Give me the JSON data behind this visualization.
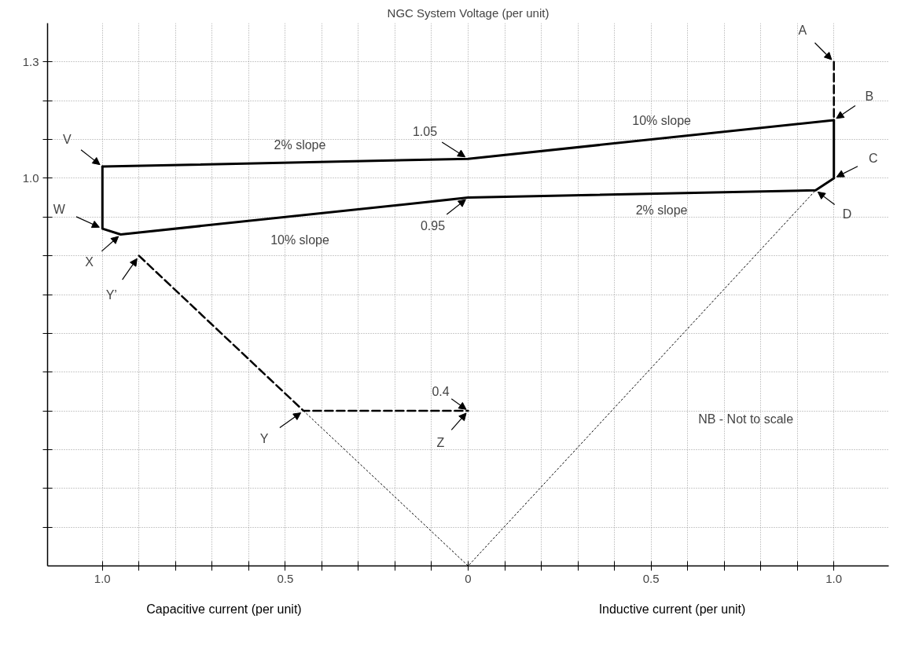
{
  "chart_data": {
    "type": "line",
    "title": "NGC System Voltage (per unit)",
    "xlabel": "Capacitive current (per unit)",
    "xlim": [
      -1.15,
      1.15
    ],
    "ylim": [
      0,
      1.4
    ],
    "xticks": [
      {
        "value": -1,
        "label": "1.0"
      },
      {
        "value": -0.9,
        "label": null
      },
      {
        "value": -0.8,
        "label": null
      },
      {
        "value": -0.7,
        "label": null
      },
      {
        "value": -0.6,
        "label": null
      },
      {
        "value": -0.5,
        "label": "0.5"
      },
      {
        "value": -0.4,
        "label": null
      },
      {
        "value": -0.3,
        "label": null
      },
      {
        "value": -0.2,
        "label": null
      },
      {
        "value": -0.1,
        "label": null
      },
      0,
      {
        "value": 0.1,
        "label": null
      },
      {
        "value": 0.2,
        "label": null
      },
      {
        "value": 0.3,
        "label": null
      },
      {
        "value": 0.4,
        "label": null
      },
      0.5,
      {
        "value": 0.6,
        "label": null
      },
      {
        "value": 0.7,
        "label": null
      },
      {
        "value": 0.8,
        "label": null
      },
      {
        "value": 0.9,
        "label": null
      },
      {
        "value": 1,
        "label": "1.0"
      }
    ],
    "yticks": [
      {
        "value": 0.1,
        "label": null
      },
      {
        "value": 0.2,
        "label": null
      },
      {
        "value": 0.3,
        "label": null
      },
      {
        "value": 0.4,
        "label": null
      },
      {
        "value": 0.5,
        "label": null
      },
      {
        "value": 0.6,
        "label": null
      },
      {
        "value": 0.7,
        "label": null
      },
      {
        "value": 0.8,
        "label": null
      },
      {
        "value": 0.9,
        "label": null
      },
      {
        "value": 1.0,
        "label": "1.0"
      },
      {
        "value": 1.1,
        "label": null
      },
      {
        "value": 1.2,
        "label": null
      },
      1.3
    ],
    "grid": true,
    "series": [
      {
        "color": "#000000",
        "line_style": "solid",
        "x": [
          -1,
          0,
          1
        ],
        "values": [
          1.03,
          1.05,
          1.15
        ]
      },
      {
        "color": "#000000",
        "line_style": "solid",
        "x": [
          -1,
          -1,
          -0.95,
          0,
          0.95,
          1,
          1
        ],
        "values": [
          1.03,
          0.87,
          0.855,
          0.95,
          0.969,
          1.0,
          1.15
        ]
      },
      {
        "color": "#000000",
        "line_style": "dashed",
        "x": [
          1,
          1
        ],
        "values": [
          1.3,
          1.15
        ]
      },
      {
        "color": "#000000",
        "line_style": "dashed",
        "x": [
          -0.9,
          -0.45,
          0
        ],
        "values": [
          0.8,
          0.4,
          0.4
        ]
      },
      {
        "color": "#000000",
        "line_style": "dotted",
        "x": [
          -0.45,
          0,
          0.95
        ],
        "values": [
          0.4,
          0,
          0.969
        ]
      }
    ],
    "annotations": [
      {
        "text": "A",
        "x": 1,
        "y": 1.3
      },
      {
        "text": "B",
        "x": 1,
        "y": 1.15
      },
      {
        "text": "C",
        "x": 1,
        "y": 1.0
      },
      {
        "text": "D",
        "x": 0.95,
        "y": 0.969
      },
      {
        "text": "V",
        "x": -1,
        "y": 1.03
      },
      {
        "text": "W",
        "x": -1,
        "y": 0.87
      },
      {
        "text": "X",
        "x": -0.95,
        "y": 0.855
      },
      {
        "text": "Y’",
        "x": -0.9,
        "y": 0.8
      },
      {
        "text": "Y",
        "x": -0.45,
        "y": 0.4
      },
      {
        "text": "Z",
        "x": 0,
        "y": 0.4
      },
      {
        "text": "1.05",
        "x": 0,
        "y": 1.05
      },
      {
        "text": "0.95",
        "x": 0,
        "y": 0.95
      },
      {
        "text": "0.4",
        "x": 0,
        "y": 0.4
      },
      "2% slope",
      "10% slope",
      "10% slope",
      "2% slope",
      "Inductive current (per unit)",
      "NB - Not to scale"
    ]
  }
}
